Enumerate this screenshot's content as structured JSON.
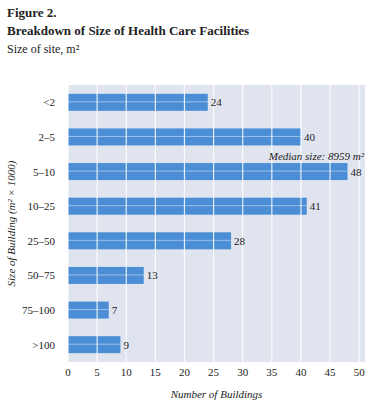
{
  "chart_data": {
    "type": "bar",
    "orientation": "horizontal",
    "figure_label": "Figure 2.",
    "title": "Breakdown of Size of Health Care Facilities",
    "subtitle": "Size of site, m²",
    "x_label": "Number of Buildings",
    "y_label": "Size of Building (m² × 1000)",
    "categories": [
      "<2",
      "2–5",
      "5–10",
      "10–25",
      "25–50",
      "50–75",
      "75–100",
      ">100"
    ],
    "values": [
      24,
      40,
      48,
      41,
      28,
      13,
      7,
      9
    ],
    "color": "#4b8ed6",
    "xlim": [
      0,
      51
    ],
    "xticks": [
      0,
      5,
      10,
      15,
      20,
      25,
      30,
      35,
      40,
      45,
      50
    ],
    "grid": true,
    "data_labels": true,
    "annotations": [
      {
        "text": "Median size: 8959 m²",
        "category": "5–10"
      }
    ]
  }
}
